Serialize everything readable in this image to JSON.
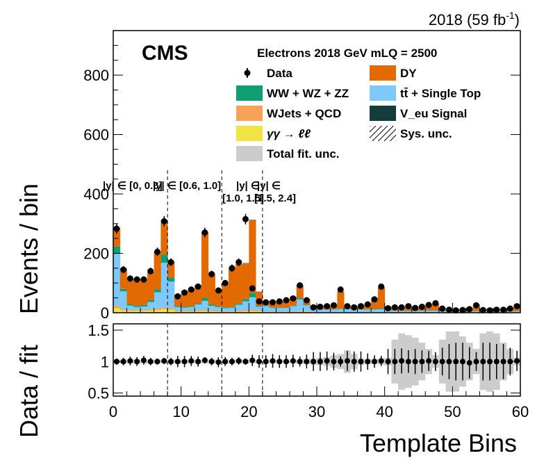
{
  "header": {
    "lumi_text": "2018 (59 fb",
    "lumi_sup": "-1",
    "lumi_close": ")",
    "cms_label": "CMS",
    "legend_title": "Electrons 2018  GeV mLQ = 2500"
  },
  "legend": {
    "items": [
      {
        "label": "Data",
        "color": "#000000",
        "kind": "marker"
      },
      {
        "label": "DY",
        "color": "#e36a00",
        "kind": "box"
      },
      {
        "label": "WW + WZ + ZZ",
        "color": "#0f9f73",
        "kind": "box"
      },
      {
        "label": "tt̄ + Single Top",
        "color": "#7ec8fa",
        "kind": "box"
      },
      {
        "label": "WJets + QCD",
        "color": "#f6a35a",
        "kind": "box"
      },
      {
        "label": "V_eu Signal",
        "color": "#143c3a",
        "kind": "box"
      },
      {
        "label": "γγ → ℓℓ",
        "color": "#f0e443",
        "kind": "box"
      },
      {
        "label": "Sys. unc.",
        "color": "#000000",
        "kind": "hatch"
      },
      {
        "label": "Total fit. unc.",
        "color": "#cccccc",
        "kind": "box"
      }
    ]
  },
  "regions": [
    {
      "label_a": "|y| ∈ [0, 0.6]"
    },
    {
      "label_a": "|y| ∈ [0.6, 1.0]"
    },
    {
      "label_a": "|y| ∈",
      "label_b": "[1.0, 1.5]"
    },
    {
      "label_a": "|y| ∈",
      "label_b": "[1.5, 2.4]"
    }
  ],
  "chart_data": [
    {
      "type": "bar",
      "stacked": true,
      "ylabel": "Events / bin",
      "xlim": [
        0,
        60
      ],
      "ylim": [
        0,
        950
      ],
      "yticks": [
        0,
        200,
        400,
        600,
        800
      ],
      "region_boundaries": [
        8,
        16,
        22
      ],
      "bins": [
        0,
        1,
        2,
        3,
        4,
        5,
        6,
        7,
        8,
        9,
        10,
        11,
        12,
        13,
        14,
        15,
        16,
        17,
        18,
        19,
        20,
        21,
        22,
        23,
        24,
        25,
        26,
        27,
        28,
        29,
        30,
        31,
        32,
        33,
        34,
        35,
        36,
        37,
        38,
        39,
        40,
        41,
        42,
        43,
        44,
        45,
        46,
        47,
        48,
        49,
        50,
        51,
        52,
        53,
        54,
        55,
        56,
        57,
        58,
        59
      ],
      "series": [
        {
          "name": "γγ → ℓℓ",
          "color": "#f0e443",
          "values": [
            15,
            8,
            6,
            6,
            6,
            7,
            9,
            12,
            10,
            4,
            4,
            4,
            5,
            6,
            5,
            4,
            3,
            3,
            4,
            5,
            6,
            5,
            2,
            2,
            2,
            2,
            2,
            3,
            3,
            2,
            1,
            1,
            1,
            2,
            1,
            1,
            1,
            1,
            2,
            1,
            1,
            1,
            1,
            1,
            1,
            1,
            1,
            1,
            1,
            1,
            1,
            1,
            1,
            1,
            1,
            1,
            1,
            1,
            1,
            1
          ]
        },
        {
          "name": "WJets + QCD",
          "color": "#f6a35a",
          "values": [
            8,
            4,
            3,
            3,
            3,
            4,
            5,
            6,
            5,
            3,
            3,
            3,
            3,
            4,
            3,
            3,
            2,
            2,
            3,
            3,
            4,
            3,
            2,
            2,
            2,
            2,
            2,
            2,
            2,
            2,
            1,
            1,
            1,
            1,
            1,
            1,
            1,
            1,
            1,
            1,
            1,
            1,
            1,
            1,
            1,
            1,
            1,
            1,
            1,
            1,
            1,
            1,
            1,
            1,
            1,
            1,
            1,
            1,
            1,
            1
          ]
        },
        {
          "name": "tt̄ + Single Top",
          "color": "#7ec8fa",
          "values": [
            175,
            60,
            15,
            10,
            12,
            25,
            55,
            150,
            90,
            12,
            10,
            12,
            20,
            30,
            15,
            12,
            10,
            12,
            20,
            30,
            42,
            12,
            18,
            12,
            12,
            12,
            18,
            40,
            20,
            10,
            10,
            8,
            8,
            10,
            10,
            8,
            8,
            8,
            8,
            10,
            6,
            5,
            4,
            4,
            4,
            5,
            5,
            5,
            4,
            3,
            3,
            3,
            3,
            3,
            3,
            3,
            3,
            3,
            3,
            3
          ]
        },
        {
          "name": "WW + WZ + ZZ",
          "color": "#0f9f73",
          "values": [
            25,
            8,
            5,
            4,
            5,
            7,
            10,
            28,
            12,
            3,
            3,
            3,
            4,
            10,
            5,
            3,
            3,
            3,
            5,
            8,
            15,
            3,
            2,
            2,
            2,
            2,
            2,
            5,
            2,
            1,
            1,
            1,
            1,
            2,
            1,
            1,
            1,
            1,
            2,
            2,
            1,
            1,
            1,
            1,
            1,
            1,
            1,
            1,
            1,
            1,
            1,
            1,
            1,
            1,
            1,
            1,
            1,
            1,
            1,
            1
          ]
        },
        {
          "name": "DY",
          "color": "#e36a00",
          "values": [
            62,
            68,
            85,
            90,
            84,
            92,
            125,
            115,
            55,
            38,
            52,
            58,
            60,
            220,
            102,
            52,
            78,
            130,
            130,
            120,
            245,
            47,
            15,
            20,
            20,
            25,
            28,
            42,
            18,
            8,
            10,
            12,
            15,
            55,
            10,
            8,
            12,
            18,
            35,
            70,
            10,
            12,
            12,
            14,
            12,
            14,
            20,
            22,
            8,
            6,
            5,
            5,
            8,
            20,
            6,
            5,
            5,
            6,
            10,
            20
          ]
        },
        {
          "name": "V_eu Signal",
          "color": "#143c3a",
          "values": [
            1,
            1,
            1,
            1,
            1,
            1,
            1,
            1,
            1,
            1,
            1,
            1,
            1,
            1,
            1,
            1,
            1,
            1,
            1,
            1,
            1,
            1,
            1,
            1,
            1,
            1,
            1,
            1,
            1,
            1,
            1,
            1,
            1,
            1,
            1,
            1,
            1,
            1,
            1,
            1,
            1,
            1,
            1,
            1,
            1,
            1,
            1,
            1,
            1,
            1,
            1,
            1,
            1,
            1,
            1,
            1,
            1,
            1,
            1,
            1
          ]
        },
        {
          "name": "Data",
          "color": "#000000",
          "values": [
            283,
            145,
            115,
            112,
            112,
            140,
            205,
            308,
            170,
            55,
            68,
            78,
            88,
            270,
            130,
            75,
            100,
            150,
            170,
            315,
            82,
            38,
            35,
            35,
            38,
            42,
            48,
            92,
            42,
            18,
            20,
            22,
            25,
            78,
            22,
            18,
            22,
            28,
            45,
            88,
            15,
            18,
            18,
            22,
            16,
            20,
            26,
            32,
            14,
            10,
            8,
            9,
            12,
            25,
            9,
            8,
            10,
            10,
            14,
            22
          ]
        }
      ]
    },
    {
      "type": "scatter",
      "ylabel": "Data / fit",
      "xlabel": "Template Bins",
      "xlim": [
        0,
        60
      ],
      "ylim": [
        0.45,
        1.6
      ],
      "yticks": [
        0.5,
        1,
        1.5
      ],
      "xticks": [
        0,
        10,
        20,
        30,
        40,
        50,
        60
      ],
      "region_boundaries": [
        8,
        16,
        22
      ],
      "ratio": [
        1.0,
        1.0,
        1.01,
        1.0,
        1.02,
        1.0,
        1.0,
        1.01,
        1.0,
        1.0,
        1.0,
        1.01,
        1.0,
        1.02,
        1.0,
        0.99,
        1.0,
        1.0,
        1.01,
        1.0,
        1.02,
        1.0,
        1.0,
        1.01,
        1.0,
        1.0,
        1.01,
        1.0,
        1.0,
        1.0,
        1.0,
        1.01,
        1.0,
        1.0,
        1.01,
        1.0,
        1.0,
        1.0,
        1.0,
        1.01,
        1.0,
        1.0,
        1.01,
        1.0,
        1.0,
        1.0,
        1.01,
        1.0,
        1.0,
        1.0,
        1.0,
        1.0,
        0.98,
        1.0,
        1.0,
        1.0,
        1.0,
        1.0,
        1.0,
        1.01
      ],
      "ratio_err": [
        0.05,
        0.06,
        0.07,
        0.07,
        0.07,
        0.06,
        0.05,
        0.05,
        0.06,
        0.09,
        0.09,
        0.08,
        0.08,
        0.05,
        0.06,
        0.08,
        0.07,
        0.06,
        0.06,
        0.05,
        0.09,
        0.1,
        0.1,
        0.11,
        0.1,
        0.1,
        0.1,
        0.08,
        0.11,
        0.15,
        0.15,
        0.15,
        0.14,
        0.08,
        0.16,
        0.16,
        0.16,
        0.13,
        0.1,
        0.08,
        0.2,
        0.2,
        0.2,
        0.18,
        0.2,
        0.18,
        0.16,
        0.15,
        0.22,
        0.28,
        0.3,
        0.3,
        0.25,
        0.15,
        0.3,
        0.3,
        0.28,
        0.28,
        0.22,
        0.16
      ],
      "fit_unc": [
        0.03,
        0.03,
        0.03,
        0.03,
        0.03,
        0.03,
        0.03,
        0.03,
        0.03,
        0.03,
        0.03,
        0.03,
        0.03,
        0.03,
        0.03,
        0.03,
        0.03,
        0.03,
        0.03,
        0.03,
        0.03,
        0.03,
        0.03,
        0.03,
        0.03,
        0.03,
        0.03,
        0.03,
        0.04,
        0.05,
        0.06,
        0.07,
        0.1,
        0.12,
        0.18,
        0.12,
        0.05,
        0.04,
        0.04,
        0.05,
        0.06,
        0.35,
        0.45,
        0.42,
        0.38,
        0.3,
        0.2,
        0.1,
        0.35,
        0.48,
        0.48,
        0.4,
        0.3,
        0.2,
        0.45,
        0.48,
        0.45,
        0.3,
        0.2,
        0.06
      ]
    }
  ]
}
